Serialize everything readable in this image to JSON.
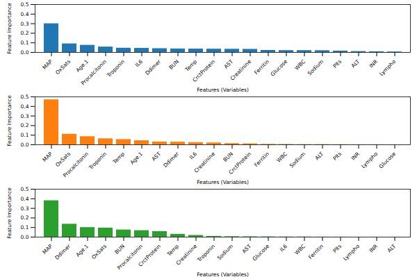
{
  "chart_data": [
    {
      "type": "bar",
      "x_label": "Features (Variables)",
      "y_label": "Feature Importance",
      "categories": [
        "MAP",
        "OxSats",
        "Age.1",
        "Procalcitonin",
        "Troponin",
        "IL6",
        "Ddimer",
        "BUN",
        "Temp",
        "CrctProtein",
        "AST",
        "Creatinine",
        "Ferritin",
        "Glucose",
        "WBC",
        "Sodium",
        "Plts",
        "ALT",
        "INR",
        "Lympho"
      ],
      "values": [
        0.3,
        0.09,
        0.075,
        0.057,
        0.045,
        0.043,
        0.04,
        0.037,
        0.036,
        0.035,
        0.034,
        0.033,
        0.022,
        0.02,
        0.02,
        0.019,
        0.015,
        0.01,
        0.008,
        0.006
      ],
      "color": "#1f77b4",
      "ylim": [
        0,
        0.5
      ],
      "yticks": [
        {
          "value": 0,
          "label": "0.0"
        },
        {
          "value": 0.1,
          "label": "0.1"
        },
        {
          "value": 0.2,
          "label": "0.2"
        },
        {
          "value": 0.3,
          "label": "0.3"
        },
        {
          "value": 0.4,
          "label": "0.4"
        },
        {
          "value": 0.5,
          "label": "0.5"
        }
      ],
      "grid": false
    },
    {
      "type": "bar",
      "x_label": "Features (Variables)",
      "y_label": "Feature Importance",
      "categories": [
        "MAP",
        "OxSats",
        "Procalcitonin",
        "Troponin",
        "Temp",
        "Age.1",
        "AST",
        "Ddimer",
        "IL6",
        "Creatinine",
        "BUN",
        "CrctProtein",
        "Ferritin",
        "WBC",
        "Sodium",
        "ALT",
        "Plts",
        "INR",
        "Lympho",
        "Glucose"
      ],
      "values": [
        0.47,
        0.11,
        0.085,
        0.063,
        0.055,
        0.043,
        0.03,
        0.028,
        0.023,
        0.02,
        0.013,
        0.01,
        0.005,
        0.004,
        0.003,
        0.003,
        0.002,
        0.001,
        0.001,
        0.0005
      ],
      "color": "#ff7f0e",
      "ylim": [
        0,
        0.5
      ],
      "yticks": [
        {
          "value": 0,
          "label": "0.0"
        },
        {
          "value": 0.1,
          "label": "0.1"
        },
        {
          "value": 0.2,
          "label": "0.2"
        },
        {
          "value": 0.3,
          "label": "0.3"
        },
        {
          "value": 0.4,
          "label": "0.4"
        },
        {
          "value": 0.5,
          "label": "0.5"
        }
      ],
      "grid": false
    },
    {
      "type": "bar",
      "x_label": "Features (Variables)",
      "y_label": "Feature Importance",
      "categories": [
        "MAP",
        "Ddimer",
        "Age.1",
        "OxSats",
        "BUN",
        "Procalcitonin",
        "CrctProtein",
        "Temp",
        "Creatinine",
        "Troponin",
        "Sodium",
        "AST",
        "Glucose",
        "IL6",
        "WBC",
        "Ferritin",
        "Plts",
        "Lympho",
        "INR",
        "ALT"
      ],
      "values": [
        0.38,
        0.135,
        0.1,
        0.095,
        0.075,
        0.068,
        0.058,
        0.03,
        0.018,
        0.008,
        0.005,
        0.004,
        0.003,
        0.002,
        0.002,
        0.001,
        0.001,
        0.0005,
        0.0005,
        0.0003
      ],
      "color": "#2ca02c",
      "ylim": [
        0,
        0.5
      ],
      "yticks": [
        {
          "value": 0,
          "label": "0.0"
        },
        {
          "value": 0.1,
          "label": "0.1"
        },
        {
          "value": 0.2,
          "label": "0.2"
        },
        {
          "value": 0.3,
          "label": "0.3"
        },
        {
          "value": 0.4,
          "label": "0.4"
        },
        {
          "value": 0.5,
          "label": "0.5"
        }
      ],
      "grid": false
    }
  ]
}
